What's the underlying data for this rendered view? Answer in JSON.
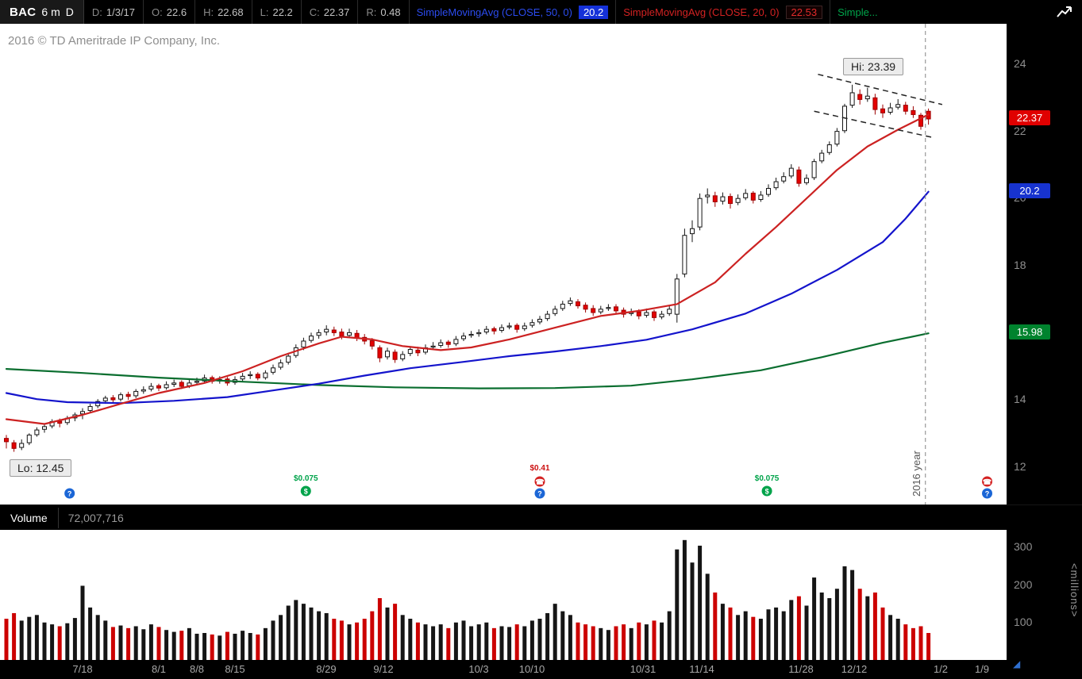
{
  "header": {
    "symbol": "BAC",
    "timeframe": "6 m",
    "aggregation": "D",
    "fields": [
      {
        "key": "D:",
        "value": "1/3/17"
      },
      {
        "key": "O:",
        "value": "22.6"
      },
      {
        "key": "H:",
        "value": "22.68"
      },
      {
        "key": "L:",
        "value": "22.2"
      },
      {
        "key": "C:",
        "value": "22.37"
      },
      {
        "key": "R:",
        "value": "0.48"
      }
    ],
    "studies": [
      {
        "label": "SimpleMovingAvg (CLOSE, 50, 0)",
        "value": "20.2",
        "color": "#2b4bee",
        "value_bg": "#1531d8",
        "value_fg": "#ffffff"
      },
      {
        "label": "SimpleMovingAvg (CLOSE, 20, 0)",
        "value": "22.53",
        "color": "#d32222",
        "value_bg": "#120202",
        "value_fg": "#e22b2b"
      },
      {
        "label": "Simple...",
        "value": "",
        "color": "#00a44a"
      }
    ]
  },
  "chart": {
    "copyright": "2016 © TD Ameritrade IP Company, Inc.",
    "hi_label": "Hi: 23.39",
    "lo_label": "Lo: 12.45",
    "year_divider_label": "2016 year"
  },
  "volume_panel": {
    "title": "Volume",
    "value": "72,007,716",
    "unit_label": "<millions>",
    "ticks": [
      300,
      200,
      100
    ]
  },
  "icons": {
    "corner_arrow": "◢"
  },
  "chart_data": {
    "type": "candlestick+volume",
    "symbol": "BAC",
    "period": "6 month daily, ending 1/3/17",
    "price_ticks": [
      24,
      22,
      20,
      18,
      16,
      14,
      12
    ],
    "ylim": [
      11.7,
      24.8
    ],
    "hi": 23.39,
    "lo": 12.45,
    "last": {
      "date": "1/3/17",
      "open": 22.6,
      "high": 22.68,
      "low": 22.2,
      "close": 22.37,
      "range": 0.48,
      "volume_text": "72,007,716"
    },
    "x_ticks": [
      {
        "label": "7/18",
        "bar": 10
      },
      {
        "label": "8/1",
        "bar": 20
      },
      {
        "label": "8/8",
        "bar": 25
      },
      {
        "label": "8/15",
        "bar": 30
      },
      {
        "label": "8/29",
        "bar": 42
      },
      {
        "label": "9/12",
        "bar": 49.5
      },
      {
        "label": "10/3",
        "bar": 62
      },
      {
        "label": "10/10",
        "bar": 69
      },
      {
        "label": "10/31",
        "bar": 83.5
      },
      {
        "label": "11/14",
        "bar": 91.2
      },
      {
        "label": "11/28",
        "bar": 104.3
      },
      {
        "label": "12/12",
        "bar": 111.3
      },
      {
        "label": "1/2",
        "bar": 122.6
      },
      {
        "label": "1/9",
        "bar": 128
      }
    ],
    "bars": [
      [
        12.85,
        12.95,
        12.55,
        12.75,
        110
      ],
      [
        12.72,
        12.8,
        12.45,
        12.55,
        125
      ],
      [
        12.58,
        12.82,
        12.5,
        12.7,
        105
      ],
      [
        12.72,
        13.0,
        12.65,
        12.95,
        115
      ],
      [
        12.96,
        13.18,
        12.9,
        13.1,
        120
      ],
      [
        13.12,
        13.28,
        13.02,
        13.2,
        100
      ],
      [
        13.22,
        13.42,
        13.15,
        13.35,
        95
      ],
      [
        13.36,
        13.44,
        13.18,
        13.3,
        90
      ],
      [
        13.32,
        13.52,
        13.25,
        13.45,
        98
      ],
      [
        13.46,
        13.62,
        13.36,
        13.55,
        112
      ],
      [
        13.58,
        13.75,
        13.42,
        13.65,
        198
      ],
      [
        13.68,
        13.88,
        13.6,
        13.8,
        140
      ],
      [
        13.82,
        14.02,
        13.75,
        13.95,
        120
      ],
      [
        13.97,
        14.12,
        13.88,
        14.05,
        105
      ],
      [
        14.06,
        14.14,
        13.92,
        14.0,
        88
      ],
      [
        14.02,
        14.22,
        13.95,
        14.15,
        92
      ],
      [
        14.16,
        14.24,
        14.0,
        14.1,
        85
      ],
      [
        14.12,
        14.32,
        14.05,
        14.25,
        90
      ],
      [
        14.26,
        14.4,
        14.18,
        14.3,
        82
      ],
      [
        14.32,
        14.5,
        14.25,
        14.4,
        95
      ],
      [
        14.42,
        14.48,
        14.26,
        14.35,
        88
      ],
      [
        14.36,
        14.55,
        14.3,
        14.45,
        80
      ],
      [
        14.46,
        14.6,
        14.38,
        14.5,
        75
      ],
      [
        14.52,
        14.58,
        14.32,
        14.4,
        78
      ],
      [
        14.42,
        14.6,
        14.35,
        14.5,
        85
      ],
      [
        14.52,
        14.66,
        14.45,
        14.55,
        70
      ],
      [
        14.56,
        14.75,
        14.5,
        14.65,
        72
      ],
      [
        14.66,
        14.72,
        14.48,
        14.55,
        68
      ],
      [
        14.56,
        14.7,
        14.48,
        14.6,
        65
      ],
      [
        14.62,
        14.68,
        14.42,
        14.5,
        75
      ],
      [
        14.52,
        14.7,
        14.45,
        14.6,
        70
      ],
      [
        14.62,
        14.8,
        14.55,
        14.7,
        78
      ],
      [
        14.72,
        14.85,
        14.62,
        14.75,
        72
      ],
      [
        14.76,
        14.82,
        14.58,
        14.65,
        68
      ],
      [
        14.66,
        14.88,
        14.6,
        14.8,
        85
      ],
      [
        14.82,
        15.05,
        14.75,
        14.95,
        105
      ],
      [
        14.97,
        15.2,
        14.9,
        15.1,
        120
      ],
      [
        15.12,
        15.4,
        15.05,
        15.3,
        145
      ],
      [
        15.32,
        15.65,
        15.25,
        15.55,
        160
      ],
      [
        15.57,
        15.85,
        15.48,
        15.75,
        150
      ],
      [
        15.77,
        16.0,
        15.7,
        15.9,
        140
      ],
      [
        15.92,
        16.1,
        15.82,
        16.0,
        130
      ],
      [
        16.02,
        16.22,
        15.92,
        16.1,
        125
      ],
      [
        16.08,
        16.18,
        15.9,
        16.0,
        110
      ],
      [
        16.02,
        16.12,
        15.8,
        15.9,
        105
      ],
      [
        15.92,
        16.12,
        15.85,
        16.0,
        95
      ],
      [
        15.98,
        16.08,
        15.75,
        15.85,
        100
      ],
      [
        15.86,
        15.96,
        15.65,
        15.75,
        110
      ],
      [
        15.76,
        15.84,
        15.5,
        15.6,
        130
      ],
      [
        15.55,
        15.62,
        15.12,
        15.25,
        165
      ],
      [
        15.28,
        15.55,
        15.2,
        15.45,
        140
      ],
      [
        15.42,
        15.5,
        15.1,
        15.2,
        150
      ],
      [
        15.22,
        15.45,
        15.15,
        15.35,
        120
      ],
      [
        15.38,
        15.6,
        15.3,
        15.5,
        110
      ],
      [
        15.48,
        15.58,
        15.3,
        15.4,
        100
      ],
      [
        15.42,
        15.65,
        15.35,
        15.55,
        95
      ],
      [
        15.57,
        15.72,
        15.5,
        15.6,
        90
      ],
      [
        15.62,
        15.8,
        15.55,
        15.7,
        95
      ],
      [
        15.72,
        15.78,
        15.55,
        15.65,
        85
      ],
      [
        15.67,
        15.9,
        15.6,
        15.8,
        100
      ],
      [
        15.82,
        16.0,
        15.75,
        15.9,
        105
      ],
      [
        15.92,
        16.05,
        15.85,
        15.95,
        90
      ],
      [
        15.97,
        16.1,
        15.88,
        16.0,
        95
      ],
      [
        16.02,
        16.2,
        15.95,
        16.1,
        100
      ],
      [
        16.12,
        16.18,
        15.95,
        16.05,
        85
      ],
      [
        16.07,
        16.25,
        16.0,
        16.15,
        90
      ],
      [
        16.17,
        16.3,
        16.1,
        16.2,
        88
      ],
      [
        16.22,
        16.28,
        16.0,
        16.1,
        95
      ],
      [
        16.12,
        16.3,
        16.05,
        16.2,
        90
      ],
      [
        16.22,
        16.4,
        16.15,
        16.3,
        105
      ],
      [
        16.32,
        16.5,
        16.25,
        16.4,
        110
      ],
      [
        16.42,
        16.65,
        16.35,
        16.55,
        125
      ],
      [
        16.57,
        16.8,
        16.5,
        16.7,
        150
      ],
      [
        16.72,
        16.95,
        16.65,
        16.85,
        130
      ],
      [
        16.87,
        17.05,
        16.8,
        16.95,
        120
      ],
      [
        16.92,
        17.0,
        16.72,
        16.8,
        100
      ],
      [
        16.82,
        16.9,
        16.6,
        16.7,
        95
      ],
      [
        16.72,
        16.82,
        16.5,
        16.6,
        90
      ],
      [
        16.62,
        16.8,
        16.55,
        16.7,
        85
      ],
      [
        16.72,
        16.85,
        16.65,
        16.75,
        80
      ],
      [
        16.77,
        16.85,
        16.55,
        16.65,
        90
      ],
      [
        16.67,
        16.75,
        16.45,
        16.55,
        95
      ],
      [
        16.57,
        16.72,
        16.5,
        16.6,
        85
      ],
      [
        16.62,
        16.7,
        16.4,
        16.5,
        100
      ],
      [
        16.52,
        16.72,
        16.45,
        16.6,
        95
      ],
      [
        16.62,
        16.68,
        16.35,
        16.45,
        105
      ],
      [
        16.47,
        16.65,
        16.4,
        16.55,
        100
      ],
      [
        16.57,
        16.8,
        16.5,
        16.7,
        130
      ],
      [
        16.55,
        17.75,
        16.3,
        17.6,
        295
      ],
      [
        17.75,
        19.1,
        17.65,
        18.9,
        320
      ],
      [
        18.95,
        19.35,
        18.7,
        19.1,
        260
      ],
      [
        19.15,
        20.15,
        19.05,
        20.0,
        305
      ],
      [
        20.05,
        20.3,
        19.85,
        20.1,
        230
      ],
      [
        20.08,
        20.2,
        19.75,
        19.9,
        180
      ],
      [
        19.92,
        20.18,
        19.82,
        20.05,
        150
      ],
      [
        20.06,
        20.15,
        19.7,
        19.85,
        140
      ],
      [
        19.88,
        20.12,
        19.8,
        20.0,
        120
      ],
      [
        20.02,
        20.28,
        19.95,
        20.15,
        130
      ],
      [
        20.16,
        20.22,
        19.85,
        19.95,
        115
      ],
      [
        19.97,
        20.22,
        19.9,
        20.1,
        110
      ],
      [
        20.12,
        20.42,
        20.05,
        20.3,
        135
      ],
      [
        20.32,
        20.62,
        20.25,
        20.5,
        140
      ],
      [
        20.52,
        20.78,
        20.45,
        20.65,
        130
      ],
      [
        20.67,
        21.02,
        20.6,
        20.9,
        160
      ],
      [
        20.85,
        20.95,
        20.35,
        20.45,
        170
      ],
      [
        20.47,
        20.72,
        20.4,
        20.6,
        145
      ],
      [
        20.62,
        21.18,
        20.55,
        21.1,
        220
      ],
      [
        21.12,
        21.45,
        21.05,
        21.35,
        180
      ],
      [
        21.37,
        21.7,
        21.3,
        21.6,
        165
      ],
      [
        21.62,
        22.1,
        21.55,
        22.0,
        190
      ],
      [
        22.02,
        22.82,
        21.95,
        22.75,
        250
      ],
      [
        22.78,
        23.39,
        22.7,
        23.15,
        240
      ],
      [
        23.1,
        23.25,
        22.8,
        22.95,
        190
      ],
      [
        22.97,
        23.3,
        22.88,
        23.05,
        170
      ],
      [
        23.0,
        23.12,
        22.5,
        22.65,
        180
      ],
      [
        22.67,
        22.8,
        22.4,
        22.55,
        140
      ],
      [
        22.57,
        22.85,
        22.5,
        22.7,
        120
      ],
      [
        22.72,
        22.96,
        22.65,
        22.8,
        110
      ],
      [
        22.78,
        22.88,
        22.5,
        22.6,
        95
      ],
      [
        22.62,
        22.75,
        22.4,
        22.5,
        85
      ],
      [
        22.48,
        22.55,
        22.05,
        22.15,
        90
      ],
      [
        22.6,
        22.68,
        22.2,
        22.37,
        72
      ]
    ],
    "sma20": [
      [
        0,
        13.42
      ],
      [
        5,
        13.28
      ],
      [
        10,
        13.55
      ],
      [
        15,
        13.88
      ],
      [
        20,
        14.2
      ],
      [
        26,
        14.5
      ],
      [
        31,
        14.85
      ],
      [
        36,
        15.3
      ],
      [
        41,
        15.68
      ],
      [
        44,
        15.88
      ],
      [
        48,
        15.8
      ],
      [
        52,
        15.6
      ],
      [
        57,
        15.48
      ],
      [
        61,
        15.56
      ],
      [
        66,
        15.8
      ],
      [
        72,
        16.15
      ],
      [
        78,
        16.5
      ],
      [
        83,
        16.65
      ],
      [
        88,
        16.85
      ],
      [
        93,
        17.5
      ],
      [
        97,
        18.35
      ],
      [
        101,
        19.15
      ],
      [
        105,
        20.0
      ],
      [
        109,
        20.85
      ],
      [
        113,
        21.55
      ],
      [
        117,
        22.05
      ],
      [
        121,
        22.5
      ]
    ],
    "sma50": [
      [
        0,
        14.2
      ],
      [
        4,
        14.02
      ],
      [
        8,
        13.93
      ],
      [
        15,
        13.9
      ],
      [
        22,
        13.97
      ],
      [
        29,
        14.08
      ],
      [
        35,
        14.28
      ],
      [
        41,
        14.48
      ],
      [
        47,
        14.72
      ],
      [
        53,
        14.94
      ],
      [
        60,
        15.13
      ],
      [
        66,
        15.3
      ],
      [
        72,
        15.44
      ],
      [
        78,
        15.6
      ],
      [
        84,
        15.79
      ],
      [
        90,
        16.1
      ],
      [
        97,
        16.57
      ],
      [
        103,
        17.16
      ],
      [
        109,
        17.87
      ],
      [
        115,
        18.7
      ],
      [
        118,
        19.4
      ],
      [
        121,
        20.2
      ]
    ],
    "sma_long": [
      [
        0,
        14.92
      ],
      [
        10,
        14.8
      ],
      [
        20,
        14.66
      ],
      [
        31,
        14.54
      ],
      [
        41,
        14.44
      ],
      [
        51,
        14.37
      ],
      [
        62,
        14.34
      ],
      [
        72,
        14.35
      ],
      [
        82,
        14.42
      ],
      [
        90,
        14.61
      ],
      [
        99,
        14.88
      ],
      [
        107,
        15.27
      ],
      [
        115,
        15.7
      ],
      [
        121,
        15.98
      ]
    ],
    "axis_bubbles": [
      {
        "label": "22.37",
        "price": 22.37,
        "color": "#e00000"
      },
      {
        "label": "20.2",
        "price": 20.2,
        "color": "#1733cf"
      },
      {
        "label": "15.98",
        "price": 15.98,
        "color": "#00832e"
      }
    ],
    "annotations": {
      "hi": {
        "bar": 111,
        "price": 23.39
      },
      "lo": {
        "bar": 1,
        "price": 12.45
      },
      "channel_upper": [
        [
          106.5,
          23.7
        ],
        [
          122.8,
          22.8
        ]
      ],
      "channel_lower": [
        [
          106,
          22.6
        ],
        [
          121.5,
          21.82
        ]
      ],
      "year_line_bar": 120.6
    },
    "markers": {
      "dividend_glyph": "$",
      "earnings_glyph": "☎",
      "call_glyph": "?",
      "dividends": [
        {
          "bar": 39.3,
          "label": "$0.075"
        },
        {
          "bar": 99.8,
          "label": "$0.075"
        }
      ],
      "earnings": [
        {
          "bar": 70,
          "label": "$0.41"
        },
        {
          "bar": 128.7,
          "label": ""
        }
      ],
      "calls": [
        {
          "bar": 8.3
        },
        {
          "bar": 70
        },
        {
          "bar": 128.7
        }
      ]
    },
    "colors": {
      "up": "#ffffff",
      "up_border": "#141414",
      "down": "#e40000",
      "down_border": "#9c0000",
      "sma20": "#cc2222",
      "sma50": "#1414cc",
      "sma_long": "#0a6e2f",
      "vol_up": "#151515",
      "vol_down": "#cc0000",
      "dividend": "#00a34a",
      "earnings": "#d42222",
      "call": "#1b66d6"
    }
  }
}
